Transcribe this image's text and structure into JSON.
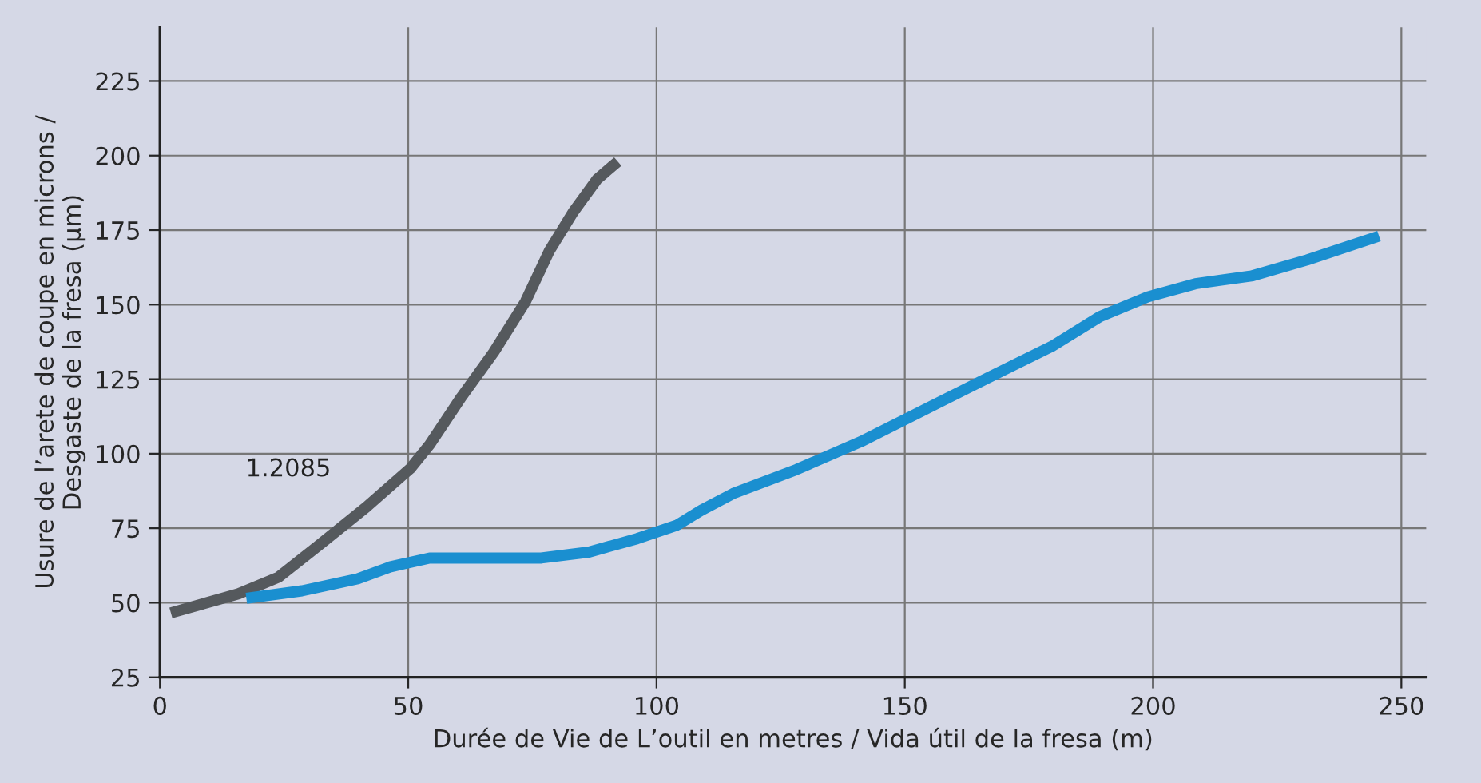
{
  "chart_data": {
    "type": "line",
    "xlabel": "Durée de Vie de L’outil en metres / Vida útil de la fresa (m)",
    "ylabel": "Usure de l’arete de coupe en microns /\nDesgaste de la fresa (µm)",
    "xlim": [
      0,
      255
    ],
    "ylim": [
      25,
      243
    ],
    "xticks": [
      0,
      50,
      100,
      150,
      200,
      250
    ],
    "yticks": [
      25,
      50,
      75,
      100,
      125,
      150,
      175,
      200,
      225
    ],
    "grid": true,
    "legend": false,
    "series": [
      {
        "name": "1.2085",
        "color": "#55595d",
        "x": [
          2.2,
          15.8,
          23.8,
          31.8,
          41.5,
          50.4,
          54.3,
          60.7,
          67.2,
          73.6,
          78.4,
          83.2,
          88,
          92.2
        ],
        "values": [
          46.6,
          53,
          58.5,
          69,
          82,
          95,
          103,
          119,
          134,
          151,
          168,
          181,
          192,
          198
        ]
      },
      {
        "color": "#1a8fd0",
        "x": [
          17.4,
          28.6,
          39.8,
          46.3,
          54.3,
          64,
          76.8,
          86.4,
          96.1,
          104.1,
          109,
          115.4,
          128.2,
          141.1,
          153.9,
          166.8,
          179.6,
          189.3,
          198.9,
          208.5,
          219.8,
          231,
          245.5
        ],
        "values": [
          51.5,
          54,
          58,
          62,
          65,
          65,
          65,
          67,
          71.5,
          76,
          81,
          86.6,
          94.7,
          104,
          114.7,
          125.5,
          136,
          146,
          152.6,
          157,
          159.6,
          165,
          173
        ]
      }
    ]
  }
}
